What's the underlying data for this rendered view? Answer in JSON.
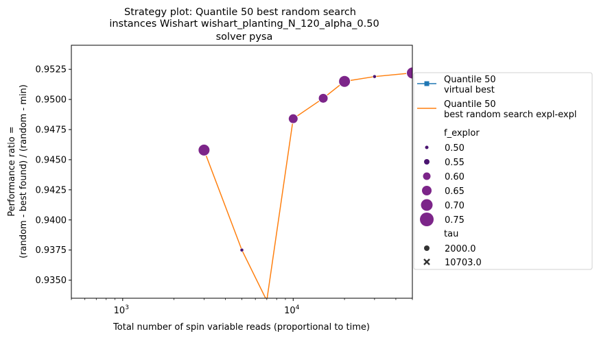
{
  "chart_data": {
    "type": "scatter",
    "title_lines": [
      "Strategy plot: Quantile 50 best random search",
      "instances Wishart wishart_planting_N_120_alpha_0.50",
      "solver pysa"
    ],
    "xlabel": "Total number of spin variable reads (proportional to time)",
    "ylabel_lines": [
      "Performance ratio =",
      "(random - best found) / (random - min)"
    ],
    "xscale": "log",
    "xlim": [
      500,
      50000
    ],
    "ylim": [
      0.9335,
      0.9545
    ],
    "x_ticks": [
      {
        "value": 1000,
        "base": "10",
        "exp": "3"
      },
      {
        "value": 10000,
        "base": "10",
        "exp": "4"
      }
    ],
    "y_ticks": [
      "0.9350",
      "0.9375",
      "0.9400",
      "0.9425",
      "0.9450",
      "0.9475",
      "0.9500",
      "0.9525"
    ],
    "grid": false,
    "legend_position": "right-outside",
    "series": [
      {
        "name": "Quantile 50\n virtual best",
        "kind": "line-marker",
        "color": "#1f77b4",
        "x": [],
        "y": []
      },
      {
        "name": "Quantile 50\n best random search expl-expl",
        "kind": "line",
        "color": "#ff7f0e",
        "x": [
          3000,
          5000,
          7000,
          10000,
          15000,
          20000,
          30000,
          50000
        ],
        "y": [
          0.9458,
          0.9375,
          0.9333,
          0.9484,
          0.9501,
          0.9515,
          0.9519,
          0.9522
        ]
      }
    ],
    "points": [
      {
        "x": 3000,
        "y": 0.9458,
        "f_explor": 0.7,
        "tau": "2000.0"
      },
      {
        "x": 5000,
        "y": 0.9375,
        "f_explor": 0.5,
        "tau": "2000.0"
      },
      {
        "x": 7000,
        "y": 0.9333,
        "f_explor": 0.5,
        "tau": "2000.0"
      },
      {
        "x": 10000,
        "y": 0.9484,
        "f_explor": 0.65,
        "tau": "2000.0"
      },
      {
        "x": 15000,
        "y": 0.9501,
        "f_explor": 0.65,
        "tau": "2000.0"
      },
      {
        "x": 20000,
        "y": 0.9515,
        "f_explor": 0.7,
        "tau": "2000.0"
      },
      {
        "x": 30000,
        "y": 0.9519,
        "f_explor": 0.5,
        "tau": "2000.0"
      },
      {
        "x": 50000,
        "y": 0.9522,
        "f_explor": 0.7,
        "tau": "2000.0"
      }
    ],
    "size_legend": {
      "title": "f_explor",
      "entries": [
        {
          "label": "0.50",
          "value": 0.5
        },
        {
          "label": "0.55",
          "value": 0.55
        },
        {
          "label": "0.60",
          "value": 0.6
        },
        {
          "label": "0.65",
          "value": 0.65
        },
        {
          "label": "0.70",
          "value": 0.7
        },
        {
          "label": "0.75",
          "value": 0.75
        }
      ]
    },
    "style_legend": {
      "title": "tau",
      "entries": [
        {
          "label": "2000.0",
          "marker": "circle"
        },
        {
          "label": "10703.0",
          "marker": "x"
        }
      ]
    },
    "colors": {
      "marker_light": "#4a1470",
      "marker_dark": "#7c2589"
    }
  }
}
